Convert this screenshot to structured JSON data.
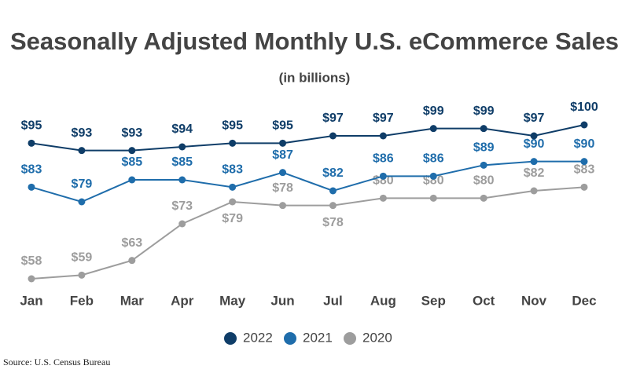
{
  "chart_data": {
    "type": "line",
    "title": "Seasonally Adjusted Monthly U.S. eCommerce Sales",
    "subtitle": "(in billions)",
    "source": "Source: U.S. Census Bureau",
    "categories": [
      "Jan",
      "Feb",
      "Mar",
      "Apr",
      "May",
      "Jun",
      "Jul",
      "Aug",
      "Sep",
      "Oct",
      "Nov",
      "Dec"
    ],
    "series": [
      {
        "name": "2022",
        "color": "#0f3d68",
        "values": [
          95,
          93,
          93,
          94,
          95,
          95,
          97,
          97,
          99,
          99,
          97,
          100
        ],
        "value_labels": [
          "$95",
          "$93",
          "$93",
          "$94",
          "$95",
          "$95",
          "$97",
          "$97",
          "$99",
          "$99",
          "$97",
          "$100"
        ]
      },
      {
        "name": "2021",
        "color": "#1f6dab",
        "values": [
          83,
          79,
          85,
          85,
          83,
          87,
          82,
          86,
          86,
          89,
          90,
          90
        ],
        "value_labels": [
          "$83",
          "$79",
          "$85",
          "$85",
          "$83",
          "$87",
          "$82",
          "$86",
          "$86",
          "$89",
          "$90",
          "$90"
        ]
      },
      {
        "name": "2020",
        "color": "#9d9d9d",
        "values": [
          58,
          59,
          63,
          73,
          79,
          78,
          78,
          80,
          80,
          80,
          82,
          83
        ],
        "value_labels": [
          "$58",
          "$59",
          "$63",
          "$73",
          "$79",
          "$78",
          "$78",
          "$80",
          "$80",
          "$80",
          "$82",
          "$83"
        ]
      }
    ],
    "legend": "bottom"
  }
}
